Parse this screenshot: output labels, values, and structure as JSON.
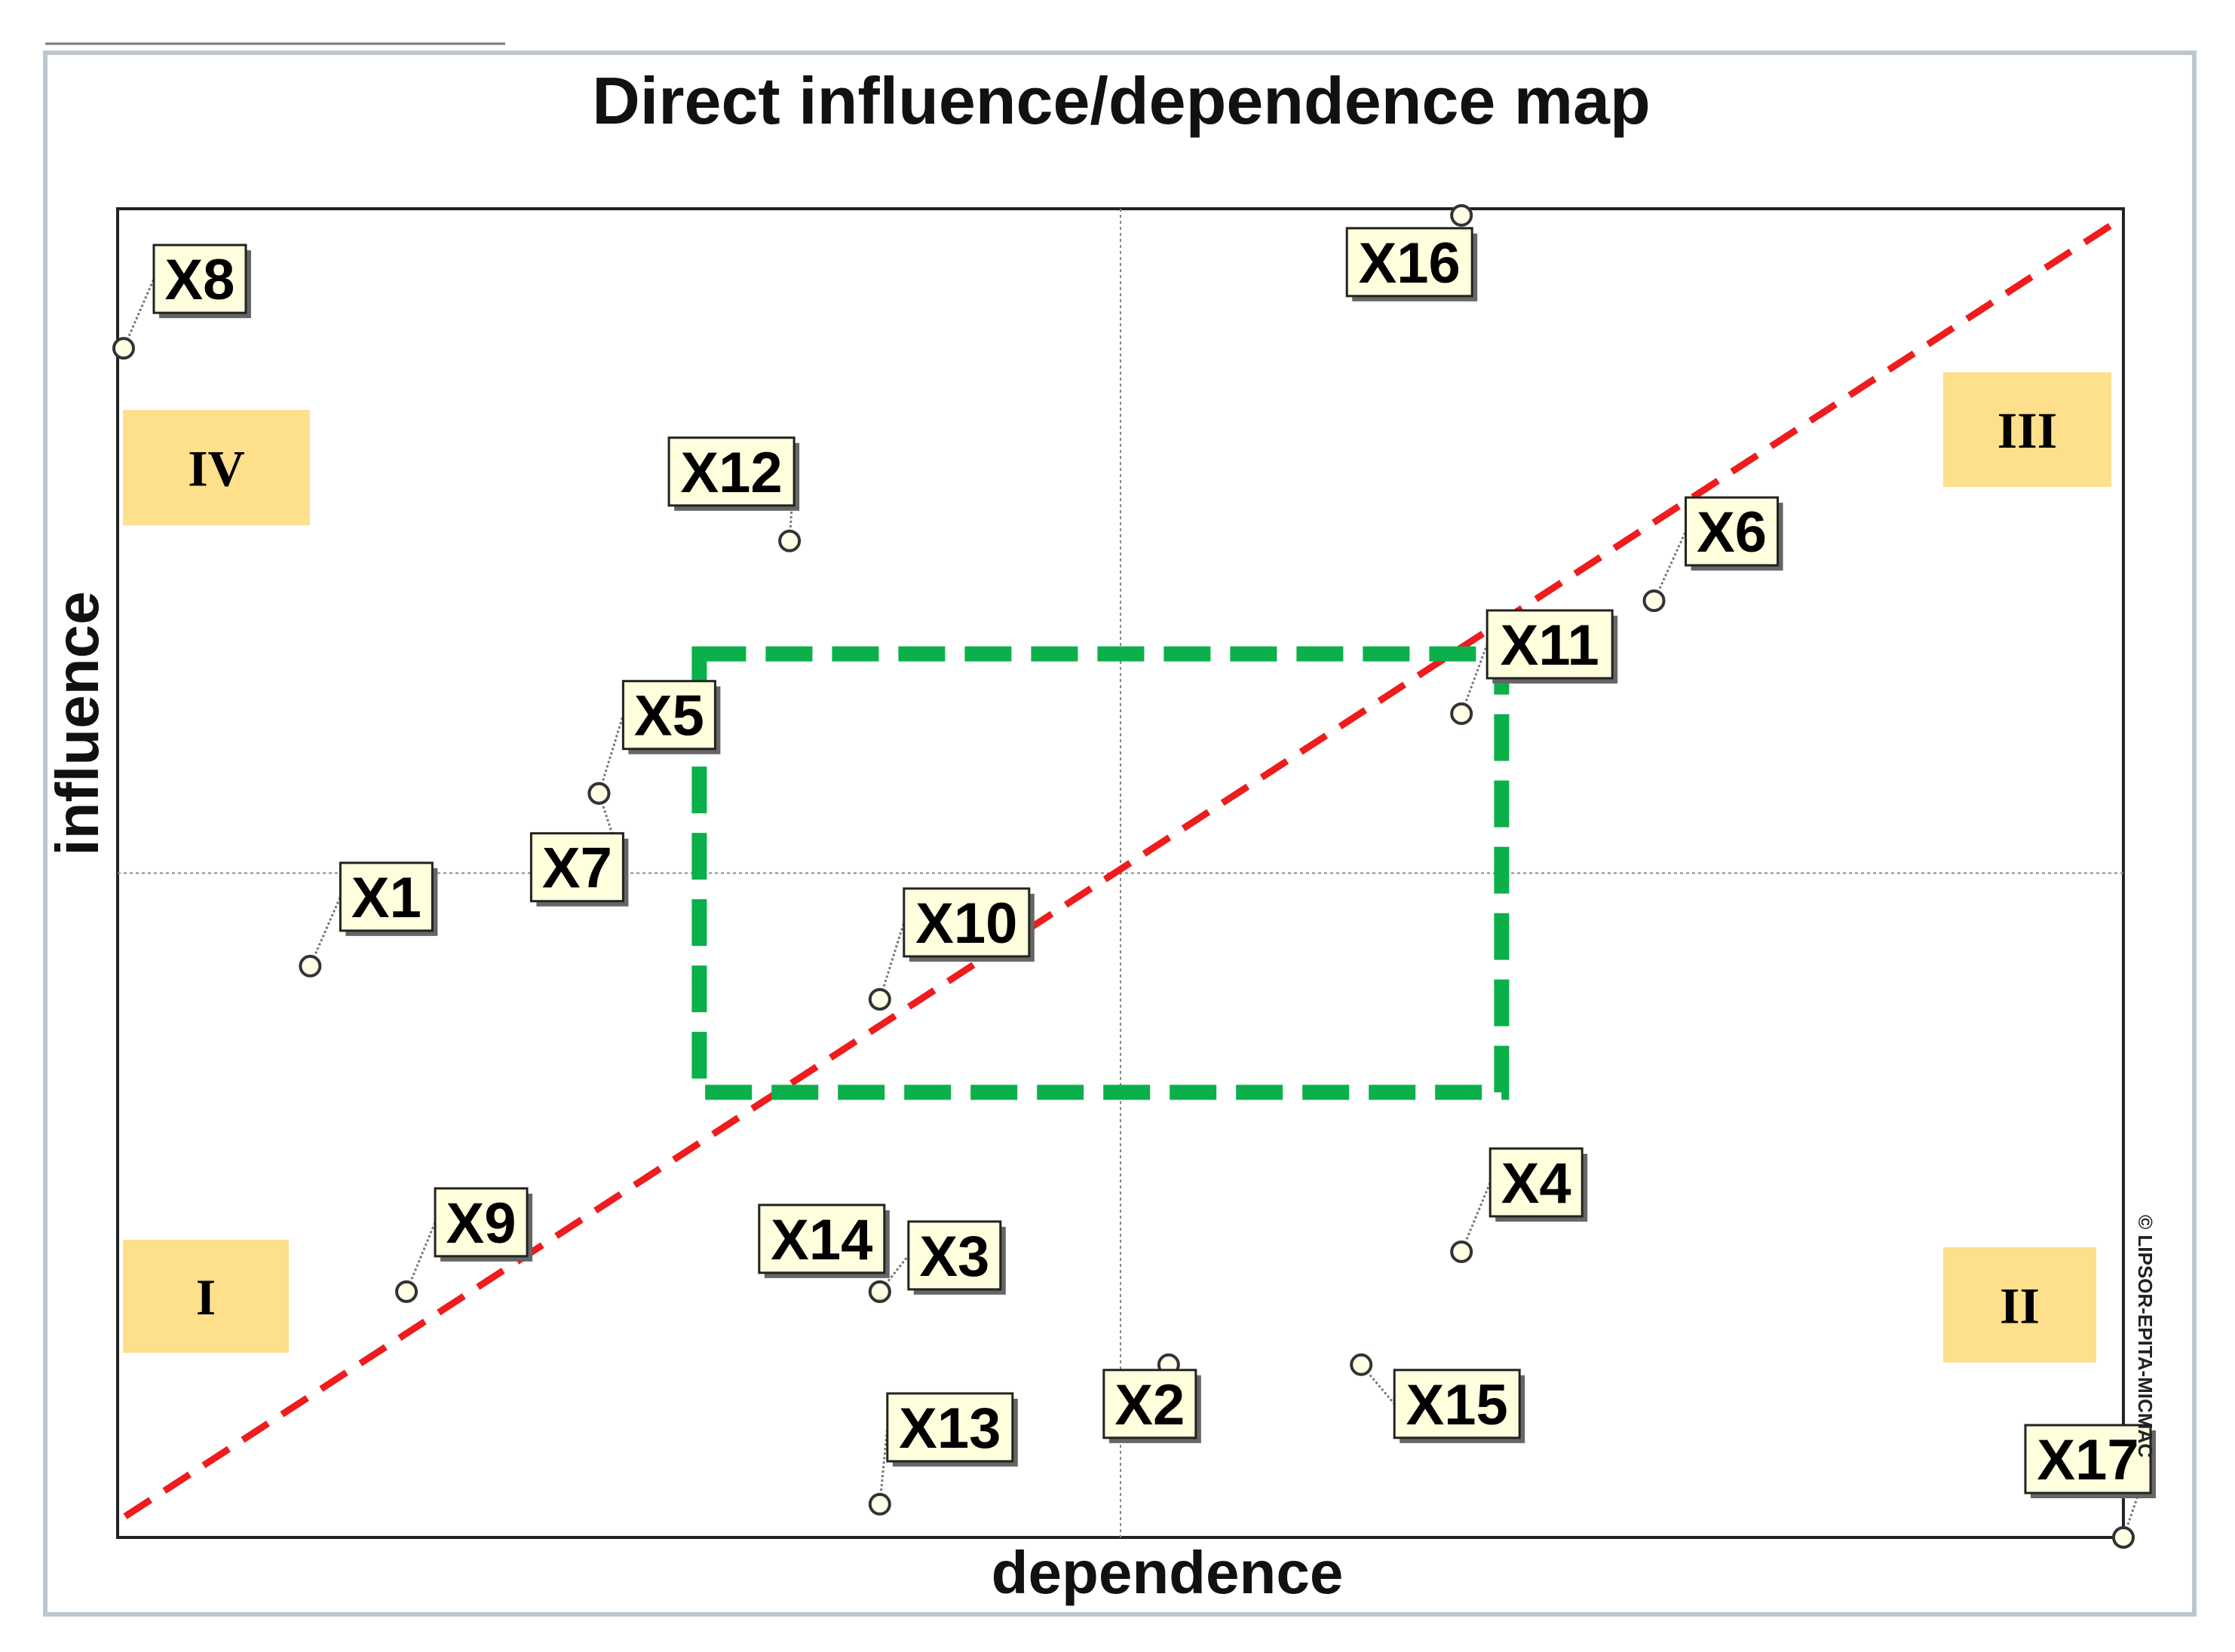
{
  "chart_data": {
    "type": "scatter",
    "title": "Direct influence/dependence map",
    "xlabel": "dependence",
    "ylabel": "influence",
    "xlim": [
      0,
      100
    ],
    "ylim": [
      0,
      100
    ],
    "copyright": "© LIPSOR-EPITA-MICMAC",
    "points": [
      {
        "label": "X1",
        "x": 9.6,
        "y": 43.0
      },
      {
        "label": "X2",
        "x": 52.4,
        "y": 13.0
      },
      {
        "label": "X3",
        "x": 38.0,
        "y": 18.5
      },
      {
        "label": "X4",
        "x": 67.0,
        "y": 21.5
      },
      {
        "label": "X5",
        "x": 24.0,
        "y": 56.0
      },
      {
        "label": "X6",
        "x": 76.6,
        "y": 70.5
      },
      {
        "label": "X7",
        "x": 24.0,
        "y": 56.0
      },
      {
        "label": "X8",
        "x": 0.3,
        "y": 89.5
      },
      {
        "label": "X9",
        "x": 14.4,
        "y": 18.5
      },
      {
        "label": "X10",
        "x": 38.0,
        "y": 40.5
      },
      {
        "label": "X11",
        "x": 67.0,
        "y": 62.0
      },
      {
        "label": "X12",
        "x": 33.5,
        "y": 75.0
      },
      {
        "label": "X13",
        "x": 38.0,
        "y": 2.5
      },
      {
        "label": "X14",
        "x": 38.0,
        "y": 18.5
      },
      {
        "label": "X15",
        "x": 62.0,
        "y": 13.0
      },
      {
        "label": "X16",
        "x": 67.0,
        "y": 99.5
      },
      {
        "label": "X17",
        "x": 100.0,
        "y": 0.0
      }
    ],
    "quadrants": [
      "I",
      "II",
      "III",
      "IV"
    ],
    "reference_lines": {
      "x_mid": 50,
      "y_mid": 50,
      "diagonal": true
    },
    "highlight_box": {
      "x": [
        29,
        69
      ],
      "y": [
        33.5,
        66.5
      ]
    },
    "colors": {
      "diagonal": "#ee1c1c",
      "highlight": "#0bb04b",
      "label_fill": "#ffffdd",
      "quadrant_fill": "#fddf8c"
    }
  }
}
